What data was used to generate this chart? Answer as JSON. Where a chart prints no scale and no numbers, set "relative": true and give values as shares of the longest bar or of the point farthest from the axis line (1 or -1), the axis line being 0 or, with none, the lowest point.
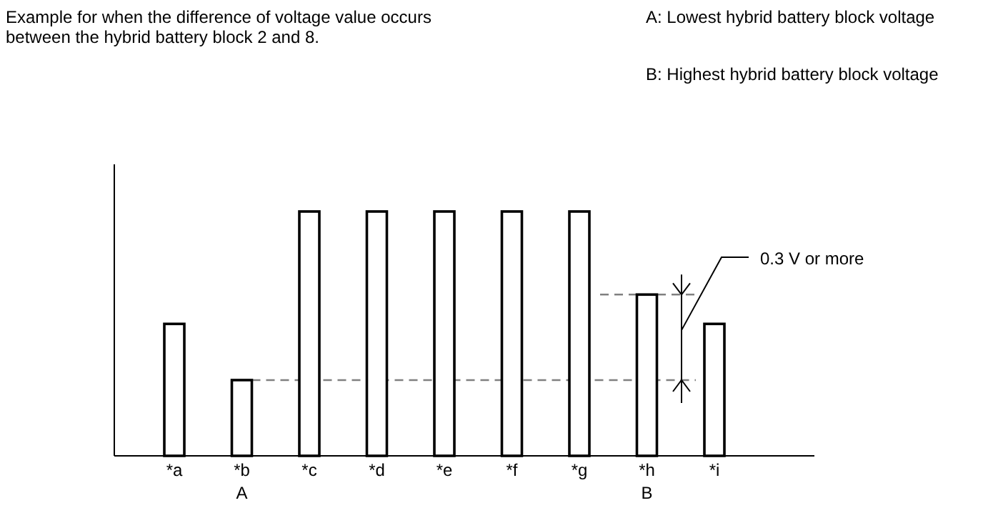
{
  "chart_data": {
    "type": "bar",
    "title": "Example for when the difference of voltage value occurs between the hybrid battery block 2 and 8.",
    "categories": [
      "*a",
      "*b",
      "*c",
      "*d",
      "*e",
      "*f",
      "*g",
      "*h",
      "*i"
    ],
    "values": [
      0.54,
      0.31,
      1,
      1,
      1,
      1,
      1,
      0.66,
      0.54
    ],
    "color": "#ffffff",
    "relative": true,
    "ref_lines": [
      {
        "axis": "y",
        "value": 0.31,
        "color": "#808080",
        "line_style": "dashed"
      },
      {
        "axis": "y",
        "value": 0.66,
        "color": "#808080",
        "line_style": "dashed"
      }
    ],
    "annotations": [
      "A: Lowest hybrid battery block voltage",
      "B: Highest hybrid battery block voltage",
      "0.3 V or more",
      "A",
      "B"
    ]
  }
}
